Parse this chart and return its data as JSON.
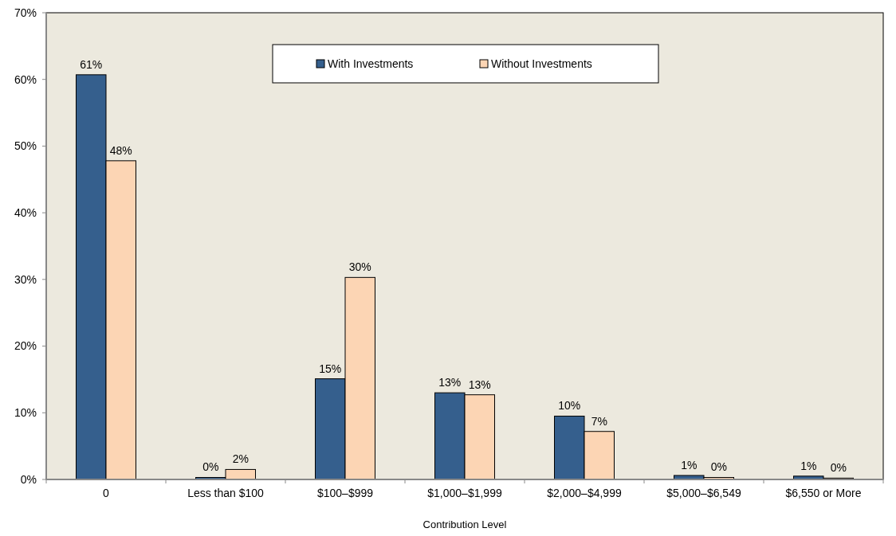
{
  "chart_data": {
    "type": "bar",
    "xlabel": "Contribution Level",
    "categories": [
      "0",
      "Less than $100",
      "$100–$999",
      "$1,000–$1,999",
      "$2,000–$4,999",
      "$5,000–$6,549",
      "$6,550 or More"
    ],
    "series": [
      {
        "name": "With Investments",
        "color": "#355f8d",
        "values": [
          60.7,
          0.3,
          15.1,
          13.0,
          9.5,
          0.6,
          0.5
        ],
        "value_labels": [
          "61%",
          "0%",
          "15%",
          "13%",
          "10%",
          "1%",
          "1%"
        ]
      },
      {
        "name": "Without Investments",
        "color": "#fcd5b4",
        "values": [
          47.8,
          1.5,
          30.3,
          12.7,
          7.2,
          0.3,
          0.2
        ],
        "value_labels": [
          "48%",
          "2%",
          "30%",
          "13%",
          "7%",
          "0%",
          "0%"
        ]
      }
    ],
    "ylim": [
      0,
      70
    ],
    "yticks": [
      {
        "value": 0,
        "label": "0%"
      },
      {
        "value": 10,
        "label": "10%"
      },
      {
        "value": 20,
        "label": "20%"
      },
      {
        "value": 30,
        "label": "30%"
      },
      {
        "value": 40,
        "label": "40%"
      },
      {
        "value": 50,
        "label": "50%"
      },
      {
        "value": 60,
        "label": "60%"
      },
      {
        "value": 70,
        "label": "70%"
      }
    ],
    "grid": false,
    "legend": "top"
  }
}
